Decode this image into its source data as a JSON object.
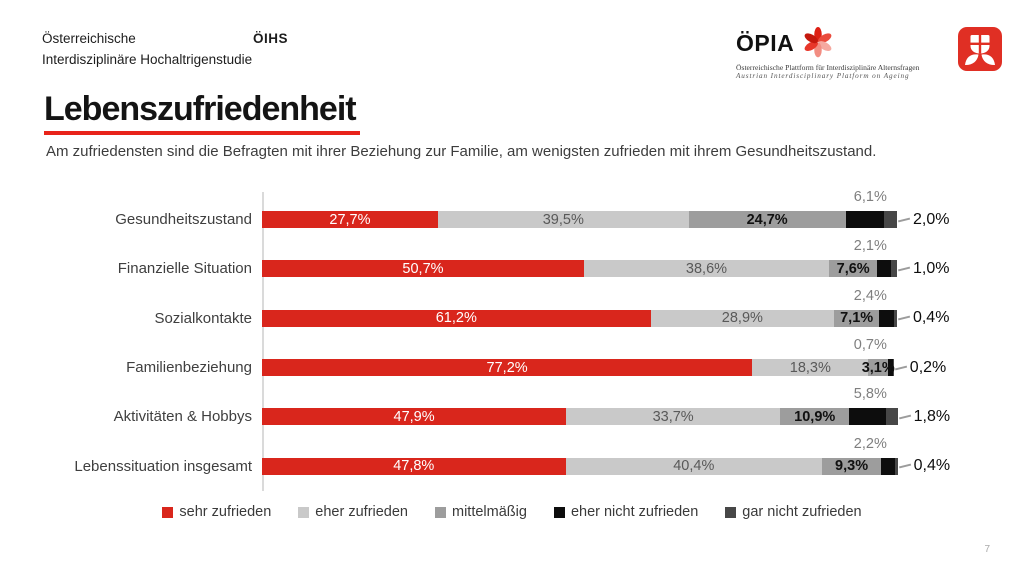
{
  "header": {
    "brand": {
      "line1_left": "Österreichische",
      "acronym": "ÖIHS",
      "line2": "Interdisziplinäre Hochaltrigenstudie"
    },
    "opia": {
      "acronym": "ÖPIA",
      "subtitle_de": "Österreichische Plattform für Interdisziplinäre Alternsfragen",
      "subtitle_en": "Austrian Interdisciplinary Platform on Ageing"
    }
  },
  "title": "Lebenszufriedenheit",
  "subtitle": "Am zufriedensten sind die Befragten mit ihrer Beziehung zur Familie, am wenigsten zufrieden mit ihrem Gesundheitszustand.",
  "page_number": "7",
  "colors": {
    "accent_red": "#d9261c",
    "title_underline": "#e8231a",
    "light_gray": "#c9c9c9",
    "mid_gray": "#9d9d9d",
    "near_black": "#0d0d0d",
    "dark_gray": "#474747",
    "axis_line": "#dadada",
    "muted_label": "#7f7f7f"
  },
  "chart_data": {
    "type": "bar",
    "variant": "horizontal-stacked",
    "unit": "%",
    "decimal_separator": ",",
    "xlim": [
      0,
      100
    ],
    "grid": false,
    "legend_position": "bottom",
    "categories": [
      "Gesundheitszustand",
      "Finanzielle Situation",
      "Sozialkontakte",
      "Familienbeziehung",
      "Aktivitäten & Hobbys",
      "Lebenssituation insgesamt"
    ],
    "series": [
      {
        "name": "sehr zufrieden",
        "color": "#d9261c",
        "label_placement": "inside",
        "label_color": "#ffffff",
        "label_bold": false,
        "values": [
          27.7,
          50.7,
          61.2,
          77.2,
          47.9,
          47.8
        ]
      },
      {
        "name": "eher zufrieden",
        "color": "#c9c9c9",
        "label_placement": "inside",
        "label_color": "#595959",
        "label_bold": false,
        "values": [
          39.5,
          38.6,
          28.9,
          18.3,
          33.7,
          40.4
        ]
      },
      {
        "name": "mittelmäßig",
        "color": "#9d9d9d",
        "label_placement": "inside",
        "label_color": "#111111",
        "label_bold": true,
        "values": [
          24.7,
          7.6,
          7.1,
          3.1,
          10.9,
          9.3
        ]
      },
      {
        "name": "eher nicht zufrieden",
        "color": "#0d0d0d",
        "label_placement": "above",
        "label_color": "#7f7f7f",
        "label_bold": false,
        "values": [
          6.1,
          2.1,
          2.4,
          0.7,
          5.8,
          2.2
        ]
      },
      {
        "name": "gar nicht zufrieden",
        "color": "#474747",
        "label_placement": "callout",
        "label_color": "#0d0d0d",
        "label_bold": false,
        "values": [
          2.0,
          1.0,
          0.4,
          0.2,
          1.8,
          0.4
        ]
      }
    ]
  }
}
